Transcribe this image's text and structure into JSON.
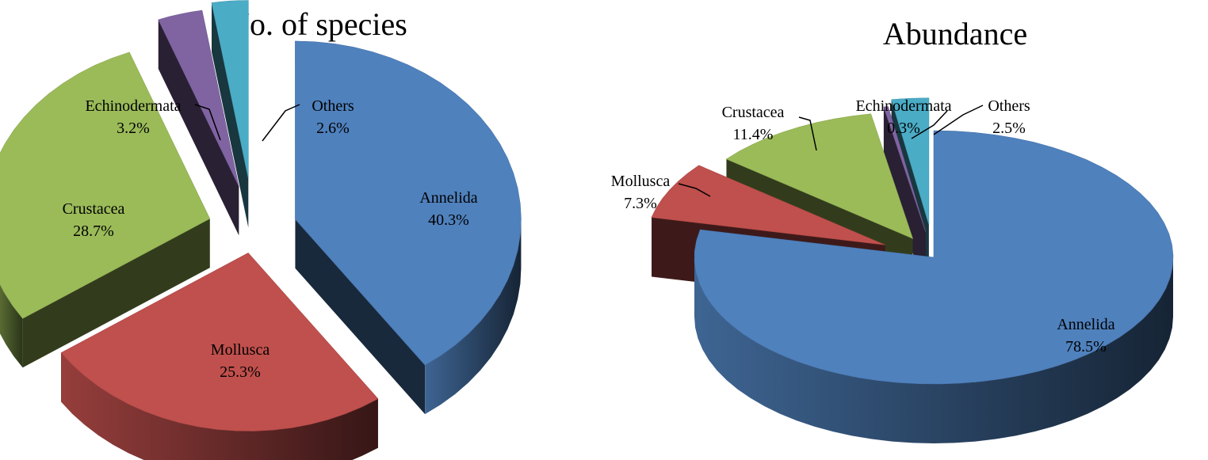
{
  "colors": {
    "Annelida": "#4f81bd",
    "Mollusca": "#c0504d",
    "Crustacea": "#9bbb59",
    "Echinodermata": "#8064a2",
    "Others": "#4bacc6"
  },
  "chart_data": [
    {
      "type": "pie",
      "variant": "3d-exploded",
      "title": "No. of species",
      "slices": [
        {
          "label": "Annelida",
          "value": 40.3,
          "value_label": "40.3%"
        },
        {
          "label": "Mollusca",
          "value": 25.3,
          "value_label": "25.3%"
        },
        {
          "label": "Crustacea",
          "value": 28.7,
          "value_label": "28.7%"
        },
        {
          "label": "Echinodermata",
          "value": 3.2,
          "value_label": "3.2%"
        },
        {
          "label": "Others",
          "value": 2.6,
          "value_label": "2.6%"
        }
      ]
    },
    {
      "type": "pie",
      "variant": "3d-exploded",
      "title": "Abundance",
      "slices": [
        {
          "label": "Annelida",
          "value": 78.5,
          "value_label": "78.5%"
        },
        {
          "label": "Mollusca",
          "value": 7.3,
          "value_label": "7.3%"
        },
        {
          "label": "Crustacea",
          "value": 11.4,
          "value_label": "11.4%"
        },
        {
          "label": "Echinodermata",
          "value": 0.3,
          "value_label": "0.3%"
        },
        {
          "label": "Others",
          "value": 2.5,
          "value_label": "2.5%"
        }
      ]
    }
  ]
}
